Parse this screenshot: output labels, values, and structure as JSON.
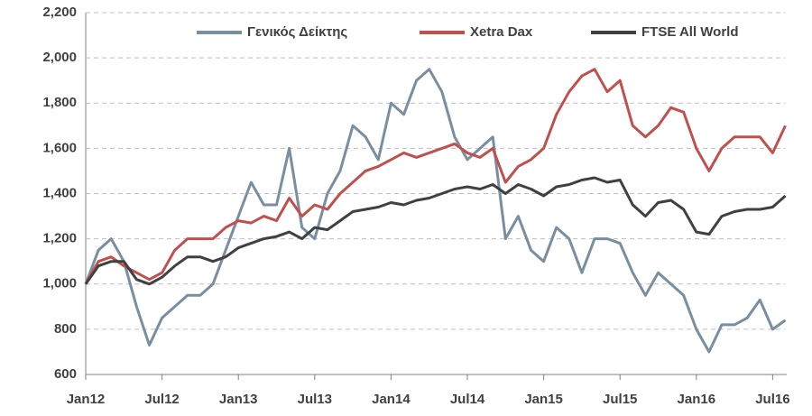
{
  "chart_data": {
    "type": "line",
    "categories": [
      "Jan12",
      null,
      null,
      null,
      null,
      null,
      "Jul12",
      null,
      null,
      null,
      null,
      null,
      "Jan13",
      null,
      null,
      null,
      null,
      null,
      "Jul13",
      null,
      null,
      null,
      null,
      null,
      "Jan14",
      null,
      null,
      null,
      null,
      null,
      "Jul14",
      null,
      null,
      null,
      null,
      null,
      "Jan15",
      null,
      null,
      null,
      null,
      null,
      "Jul15",
      null,
      null,
      null,
      null,
      null,
      "Jan16",
      null,
      null,
      null,
      null,
      null,
      "Jul16",
      null
    ],
    "series": [
      {
        "name": "Γενικός Δείκτης",
        "color": "#7a8ea2",
        "values": [
          1000,
          1150,
          1200,
          1100,
          900,
          730,
          850,
          900,
          950,
          950,
          1000,
          1150,
          1300,
          1450,
          1350,
          1350,
          1600,
          1250,
          1200,
          1400,
          1500,
          1700,
          1650,
          1550,
          1800,
          1750,
          1900,
          1950,
          1850,
          1650,
          1550,
          1600,
          1650,
          1200,
          1300,
          1150,
          1100,
          1250,
          1200,
          1050,
          1200,
          1200,
          1180,
          1050,
          950,
          1050,
          1000,
          950,
          800,
          700,
          820,
          820,
          850,
          930,
          800,
          840
        ]
      },
      {
        "name": "Xetra Dax",
        "color": "#c0504d",
        "values": [
          1000,
          1100,
          1120,
          1080,
          1050,
          1020,
          1050,
          1150,
          1200,
          1200,
          1200,
          1250,
          1280,
          1270,
          1300,
          1280,
          1380,
          1300,
          1350,
          1330,
          1400,
          1450,
          1500,
          1520,
          1550,
          1580,
          1560,
          1580,
          1600,
          1620,
          1580,
          1560,
          1600,
          1450,
          1520,
          1550,
          1600,
          1750,
          1850,
          1920,
          1950,
          1850,
          1900,
          1700,
          1650,
          1700,
          1780,
          1760,
          1600,
          1500,
          1600,
          1650,
          1650,
          1650,
          1580,
          1700
        ]
      },
      {
        "name": "FTSE All World",
        "color": "#404040",
        "values": [
          1000,
          1080,
          1100,
          1100,
          1020,
          1000,
          1030,
          1080,
          1120,
          1120,
          1100,
          1120,
          1160,
          1180,
          1200,
          1210,
          1230,
          1200,
          1250,
          1240,
          1280,
          1320,
          1330,
          1340,
          1360,
          1350,
          1370,
          1380,
          1400,
          1420,
          1430,
          1420,
          1440,
          1400,
          1440,
          1420,
          1390,
          1430,
          1440,
          1460,
          1470,
          1450,
          1460,
          1350,
          1300,
          1360,
          1370,
          1330,
          1230,
          1220,
          1300,
          1320,
          1330,
          1330,
          1340,
          1390
        ]
      }
    ],
    "ylim": [
      600,
      2200
    ],
    "yticks": [
      600,
      800,
      {
        "value": 1000,
        "label": "1,000"
      },
      {
        "value": 1200,
        "label": "1,200"
      },
      {
        "value": 1400,
        "label": "1,400"
      },
      {
        "value": 1600,
        "label": "1,600"
      },
      {
        "value": 1800,
        "label": "1,800"
      },
      {
        "value": 2000,
        "label": "2,000"
      },
      {
        "value": 2200,
        "label": "2,200"
      }
    ],
    "grid": true
  }
}
